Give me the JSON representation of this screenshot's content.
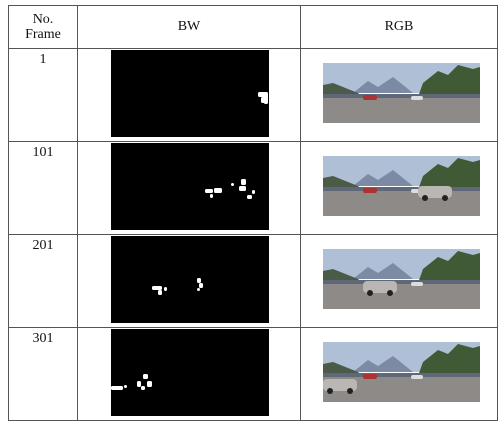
{
  "table": {
    "header": [
      "No. Frame",
      "BW",
      "RGB"
    ],
    "rows": [
      [
        "1"
      ],
      [
        "101"
      ],
      [
        "201"
      ],
      [
        "301"
      ]
    ]
  }
}
